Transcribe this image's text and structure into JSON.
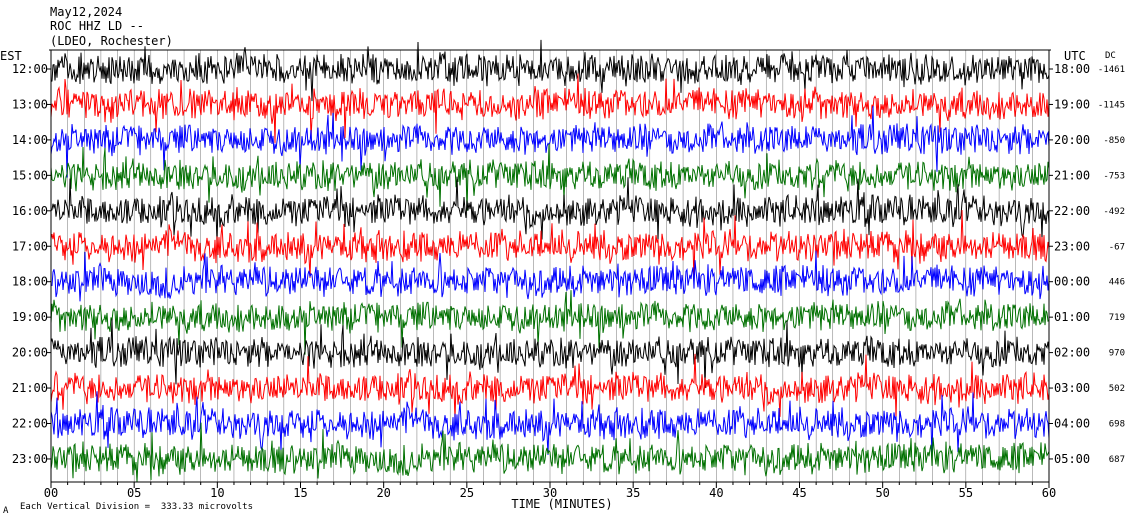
{
  "header": {
    "date": "May12,2024",
    "station": "ROC HHZ LD --",
    "location": "(LDEO, Rochester)"
  },
  "footer": {
    "scale_note": "Each Vertical Division =  333.33 microvolts",
    "corner_mark": "A"
  },
  "chart_data": {
    "type": "line",
    "title": "",
    "xlabel": "TIME (MINUTES)",
    "left_axis_label": "EST",
    "right_axis_label": "UTC",
    "dc_label": "DC",
    "xlim": [
      0,
      60
    ],
    "x_ticks": [
      "00",
      "05",
      "10",
      "15",
      "20",
      "25",
      "30",
      "35",
      "40",
      "45",
      "50",
      "55",
      "60"
    ],
    "trace_colors": [
      "#000000",
      "#ff0000",
      "#0000ff",
      "#007000"
    ],
    "rows": [
      {
        "est": "12:00",
        "utc": "18:00",
        "dc": "-1461"
      },
      {
        "est": "13:00",
        "utc": "19:00",
        "dc": "-1145"
      },
      {
        "est": "14:00",
        "utc": "20:00",
        "dc": "-850"
      },
      {
        "est": "15:00",
        "utc": "21:00",
        "dc": "-753"
      },
      {
        "est": "16:00",
        "utc": "22:00",
        "dc": "-492"
      },
      {
        "est": "17:00",
        "utc": "23:00",
        "dc": "-67"
      },
      {
        "est": "18:00",
        "utc": "00:00",
        "dc": "446"
      },
      {
        "est": "19:00",
        "utc": "01:00",
        "dc": "719"
      },
      {
        "est": "20:00",
        "utc": "02:00",
        "dc": "970"
      },
      {
        "est": "21:00",
        "utc": "03:00",
        "dc": "502"
      },
      {
        "est": "22:00",
        "utc": "04:00",
        "dc": "698"
      },
      {
        "est": "23:00",
        "utc": "05:00",
        "dc": "687"
      }
    ]
  }
}
